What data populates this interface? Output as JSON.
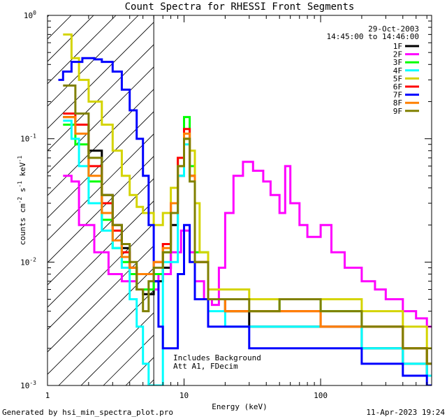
{
  "chart_data": {
    "type": "line",
    "title": "Count Spectra for RHESSI Front Segments",
    "xlabel": "Energy (keV)",
    "ylabel": "counts cm",
    "ylabel_parts": [
      "counts cm",
      "-2",
      " s",
      "-1",
      " keV",
      "-1"
    ],
    "x_scale": "log",
    "y_scale": "log",
    "xlim": [
      1,
      650
    ],
    "ylim": [
      0.001,
      1
    ],
    "x_ticks": [
      {
        "value": 1,
        "label": "1"
      },
      {
        "value": 10,
        "label": "10"
      },
      {
        "value": 100,
        "label": "100"
      }
    ],
    "y_ticks": [
      {
        "value": 0.001,
        "base": "10",
        "exp": "-3"
      },
      {
        "value": 0.01,
        "base": "10",
        "exp": "-2"
      },
      {
        "value": 0.1,
        "base": "10",
        "exp": "-1"
      },
      {
        "value": 1,
        "base": "10",
        "exp": "0"
      }
    ],
    "date": "29-Oct-2003",
    "time_range": "14:45:00 to 14:46:00",
    "legend_position": "top-right",
    "shaded_region": {
      "x_max": 6,
      "style": "hatched"
    },
    "annotation": [
      "Includes Background",
      "Att A1, FDecim"
    ],
    "footer_left": "Generated by hsi_min_spectra_plot.pro",
    "footer_right": "11-Apr-2023 19:24",
    "series": [
      {
        "name": "1F",
        "color": "#000000",
        "points": [
          [
            1.3,
            0.15
          ],
          [
            1.6,
            0.13
          ],
          [
            2.0,
            0.08
          ],
          [
            2.5,
            0.035
          ],
          [
            3.0,
            0.02
          ],
          [
            3.5,
            0.013
          ],
          [
            4.0,
            0.009
          ],
          [
            4.5,
            0.006
          ],
          [
            5.0,
            0.0055
          ],
          [
            6.0,
            0.007
          ],
          [
            7.0,
            0.009
          ],
          [
            8.0,
            0.02
          ],
          [
            9.0,
            0.05
          ],
          [
            10.0,
            0.1
          ],
          [
            11.0,
            0.05
          ],
          [
            12.0,
            0.01
          ],
          [
            15.0,
            0.005
          ],
          [
            20.0,
            0.004
          ],
          [
            30.0,
            0.003
          ],
          [
            50.0,
            0.003
          ],
          [
            100.0,
            0.003
          ],
          [
            200.0,
            0.002
          ],
          [
            400.0,
            0.0015
          ],
          [
            600.0,
            0.0012
          ]
        ]
      },
      {
        "name": "2F",
        "color": "#ff00ff",
        "points": [
          [
            1.3,
            0.05
          ],
          [
            1.5,
            0.045
          ],
          [
            1.7,
            0.02
          ],
          [
            2.2,
            0.012
          ],
          [
            2.8,
            0.008
          ],
          [
            3.5,
            0.007
          ],
          [
            4.5,
            0.006
          ],
          [
            5.5,
            0.006
          ],
          [
            6.5,
            0.008
          ],
          [
            8.0,
            0.012
          ],
          [
            9.5,
            0.018
          ],
          [
            11.0,
            0.012
          ],
          [
            12.0,
            0.007
          ],
          [
            14.0,
            0.005
          ],
          [
            16.0,
            0.0045
          ],
          [
            18.0,
            0.009
          ],
          [
            20.0,
            0.025
          ],
          [
            23.0,
            0.05
          ],
          [
            27.0,
            0.065
          ],
          [
            32.0,
            0.055
          ],
          [
            38.0,
            0.045
          ],
          [
            43.0,
            0.035
          ],
          [
            50.0,
            0.025
          ],
          [
            55.0,
            0.06
          ],
          [
            60.0,
            0.03
          ],
          [
            70.0,
            0.02
          ],
          [
            80.0,
            0.016
          ],
          [
            100.0,
            0.02
          ],
          [
            120.0,
            0.012
          ],
          [
            150.0,
            0.009
          ],
          [
            200.0,
            0.007
          ],
          [
            250.0,
            0.006
          ],
          [
            300.0,
            0.005
          ],
          [
            400.0,
            0.004
          ],
          [
            500.0,
            0.0035
          ],
          [
            600.0,
            0.003
          ]
        ]
      },
      {
        "name": "3F",
        "color": "#00ff00",
        "points": [
          [
            1.3,
            0.13
          ],
          [
            1.6,
            0.09
          ],
          [
            2.0,
            0.045
          ],
          [
            2.5,
            0.022
          ],
          [
            3.0,
            0.013
          ],
          [
            3.5,
            0.01
          ],
          [
            4.0,
            0.008
          ],
          [
            4.5,
            0.006
          ],
          [
            5.0,
            0.006
          ],
          [
            6.0,
            0.008
          ],
          [
            7.0,
            0.012
          ],
          [
            8.0,
            0.03
          ],
          [
            9.0,
            0.07
          ],
          [
            10.0,
            0.15
          ],
          [
            11.0,
            0.06
          ],
          [
            12.0,
            0.012
          ],
          [
            15.0,
            0.005
          ],
          [
            20.0,
            0.004
          ],
          [
            30.0,
            0.004
          ],
          [
            50.0,
            0.005
          ],
          [
            100.0,
            0.004
          ],
          [
            200.0,
            0.003
          ],
          [
            400.0,
            0.002
          ],
          [
            600.0,
            0.0015
          ]
        ]
      },
      {
        "name": "4F",
        "color": "#00ffff",
        "points": [
          [
            1.3,
            0.14
          ],
          [
            1.5,
            0.1
          ],
          [
            1.7,
            0.06
          ],
          [
            2.0,
            0.03
          ],
          [
            2.5,
            0.018
          ],
          [
            3.0,
            0.013
          ],
          [
            3.5,
            0.009
          ],
          [
            4.0,
            0.005
          ],
          [
            4.5,
            0.003
          ],
          [
            5.0,
            0.0015
          ],
          [
            5.5,
            0.001
          ],
          [
            7.0,
            0.01
          ],
          [
            9.0,
            0.05
          ],
          [
            10.0,
            0.09
          ],
          [
            11.0,
            0.05
          ],
          [
            12.0,
            0.01
          ],
          [
            15.0,
            0.004
          ],
          [
            20.0,
            0.003
          ],
          [
            30.0,
            0.003
          ],
          [
            50.0,
            0.003
          ],
          [
            100.0,
            0.003
          ],
          [
            200.0,
            0.002
          ],
          [
            400.0,
            0.0015
          ],
          [
            600.0,
            0.0012
          ]
        ]
      },
      {
        "name": "5F",
        "color": "#d4d400",
        "points": [
          [
            1.3,
            0.7
          ],
          [
            1.5,
            0.45
          ],
          [
            1.7,
            0.3
          ],
          [
            2.0,
            0.2
          ],
          [
            2.5,
            0.13
          ],
          [
            3.0,
            0.08
          ],
          [
            3.5,
            0.05
          ],
          [
            4.0,
            0.035
          ],
          [
            4.5,
            0.028
          ],
          [
            5.0,
            0.025
          ],
          [
            6.0,
            0.02
          ],
          [
            7.0,
            0.025
          ],
          [
            8.0,
            0.04
          ],
          [
            9.0,
            0.07
          ],
          [
            10.0,
            0.1
          ],
          [
            11.0,
            0.08
          ],
          [
            12.0,
            0.03
          ],
          [
            13.0,
            0.012
          ],
          [
            15.0,
            0.006
          ],
          [
            20.0,
            0.006
          ],
          [
            30.0,
            0.005
          ],
          [
            50.0,
            0.005
          ],
          [
            100.0,
            0.005
          ],
          [
            200.0,
            0.004
          ],
          [
            400.0,
            0.003
          ],
          [
            600.0,
            0.002
          ]
        ]
      },
      {
        "name": "6F",
        "color": "#ff0000",
        "points": [
          [
            1.3,
            0.16
          ],
          [
            1.6,
            0.13
          ],
          [
            2.0,
            0.06
          ],
          [
            2.5,
            0.03
          ],
          [
            3.0,
            0.018
          ],
          [
            3.5,
            0.012
          ],
          [
            4.0,
            0.009
          ],
          [
            4.5,
            0.008
          ],
          [
            5.0,
            0.008
          ],
          [
            6.0,
            0.01
          ],
          [
            7.0,
            0.014
          ],
          [
            8.0,
            0.03
          ],
          [
            9.0,
            0.07
          ],
          [
            10.0,
            0.12
          ],
          [
            11.0,
            0.05
          ],
          [
            12.0,
            0.01
          ],
          [
            15.0,
            0.005
          ],
          [
            20.0,
            0.004
          ],
          [
            30.0,
            0.004
          ],
          [
            50.0,
            0.004
          ],
          [
            100.0,
            0.003
          ],
          [
            200.0,
            0.003
          ],
          [
            400.0,
            0.002
          ],
          [
            600.0,
            0.0015
          ]
        ]
      },
      {
        "name": "7F",
        "color": "#0000ff",
        "points": [
          [
            1.2,
            0.3
          ],
          [
            1.3,
            0.35
          ],
          [
            1.5,
            0.42
          ],
          [
            1.8,
            0.45
          ],
          [
            2.2,
            0.44
          ],
          [
            2.5,
            0.42
          ],
          [
            3.0,
            0.35
          ],
          [
            3.5,
            0.25
          ],
          [
            4.0,
            0.17
          ],
          [
            4.5,
            0.1
          ],
          [
            5.0,
            0.05
          ],
          [
            5.5,
            0.02
          ],
          [
            6.0,
            0.007
          ],
          [
            6.5,
            0.003
          ],
          [
            7.0,
            0.002
          ],
          [
            8.0,
            0.002
          ],
          [
            9.0,
            0.008
          ],
          [
            10.0,
            0.02
          ],
          [
            11.0,
            0.01
          ],
          [
            12.0,
            0.005
          ],
          [
            15.0,
            0.003
          ],
          [
            20.0,
            0.003
          ],
          [
            30.0,
            0.002
          ],
          [
            50.0,
            0.002
          ],
          [
            100.0,
            0.002
          ],
          [
            200.0,
            0.0015
          ],
          [
            400.0,
            0.0012
          ],
          [
            600.0,
            0.001
          ]
        ]
      },
      {
        "name": "8F",
        "color": "#ff8000",
        "points": [
          [
            1.3,
            0.15
          ],
          [
            1.6,
            0.11
          ],
          [
            2.0,
            0.05
          ],
          [
            2.5,
            0.025
          ],
          [
            3.0,
            0.015
          ],
          [
            3.5,
            0.011
          ],
          [
            4.0,
            0.009
          ],
          [
            4.5,
            0.008
          ],
          [
            5.0,
            0.008
          ],
          [
            6.0,
            0.01
          ],
          [
            7.0,
            0.013
          ],
          [
            8.0,
            0.03
          ],
          [
            9.0,
            0.06
          ],
          [
            10.0,
            0.11
          ],
          [
            11.0,
            0.05
          ],
          [
            12.0,
            0.01
          ],
          [
            15.0,
            0.005
          ],
          [
            20.0,
            0.004
          ],
          [
            30.0,
            0.004
          ],
          [
            50.0,
            0.004
          ],
          [
            100.0,
            0.003
          ],
          [
            200.0,
            0.003
          ],
          [
            400.0,
            0.002
          ],
          [
            600.0,
            0.0015
          ]
        ]
      },
      {
        "name": "9F",
        "color": "#808000",
        "points": [
          [
            1.3,
            0.27
          ],
          [
            1.6,
            0.16
          ],
          [
            2.0,
            0.07
          ],
          [
            2.5,
            0.035
          ],
          [
            3.0,
            0.02
          ],
          [
            3.5,
            0.014
          ],
          [
            4.0,
            0.01
          ],
          [
            4.5,
            0.006
          ],
          [
            5.0,
            0.004
          ],
          [
            5.5,
            0.007
          ],
          [
            6.0,
            0.009
          ],
          [
            7.0,
            0.012
          ],
          [
            8.0,
            0.025
          ],
          [
            9.0,
            0.06
          ],
          [
            10.0,
            0.1
          ],
          [
            11.0,
            0.045
          ],
          [
            12.0,
            0.01
          ],
          [
            15.0,
            0.005
          ],
          [
            20.0,
            0.005
          ],
          [
            30.0,
            0.004
          ],
          [
            50.0,
            0.005
          ],
          [
            100.0,
            0.004
          ],
          [
            200.0,
            0.003
          ],
          [
            400.0,
            0.002
          ],
          [
            600.0,
            0.0015
          ]
        ]
      }
    ]
  }
}
